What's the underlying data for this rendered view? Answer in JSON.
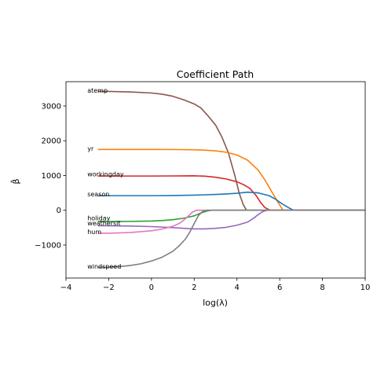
{
  "chart_data": {
    "type": "line",
    "title": "Coefficient Path",
    "xlabel": "log(λ)",
    "ylabel": "β̂",
    "xlim": [
      -4,
      10
    ],
    "ylim": [
      -1950,
      3700
    ],
    "xticks": [
      -4,
      -2,
      0,
      2,
      4,
      6,
      8,
      10
    ],
    "xtick_labels": [
      "−4",
      "−2",
      "0",
      "2",
      "4",
      "6",
      "8",
      "10"
    ],
    "yticks": [
      -1000,
      0,
      1000,
      2000,
      3000
    ],
    "ytick_labels": [
      "−1000",
      "0",
      "1000",
      "2000",
      "3000"
    ],
    "grid": false,
    "legend": "none",
    "series": [
      {
        "name": "atemp",
        "color": "#8c564b",
        "label_at": [
          -3.0,
          3450
        ],
        "x": [
          -2.5,
          -2,
          -1,
          0,
          0.5,
          1,
          1.5,
          2,
          2.3,
          2.6,
          3,
          3.3,
          3.6,
          3.9,
          4.1,
          4.3,
          4.45,
          10
        ],
        "y": [
          3420,
          3418,
          3405,
          3375,
          3340,
          3280,
          3180,
          3060,
          2950,
          2750,
          2450,
          2100,
          1650,
          1000,
          500,
          150,
          0,
          0
        ]
      },
      {
        "name": "yr",
        "color": "#ff7f0e",
        "label_at": [
          -3.0,
          1780
        ],
        "x": [
          -2.5,
          -2,
          -1,
          0,
          1,
          2,
          2.5,
          3,
          3.5,
          4,
          4.5,
          5,
          5.3,
          5.6,
          5.9,
          6.15,
          10
        ],
        "y": [
          1750,
          1750,
          1750,
          1750,
          1748,
          1740,
          1730,
          1710,
          1670,
          1590,
          1440,
          1150,
          880,
          560,
          250,
          0,
          0
        ]
      },
      {
        "name": "workingday",
        "color": "#d62728",
        "label_at": [
          -3.0,
          1040
        ],
        "x": [
          -2.5,
          -2,
          -1,
          0,
          1,
          2,
          2.5,
          3,
          3.5,
          4,
          4.3,
          4.6,
          4.9,
          5.1,
          5.3,
          5.55,
          10
        ],
        "y": [
          985,
          985,
          985,
          985,
          988,
          992,
          980,
          950,
          900,
          820,
          740,
          630,
          420,
          230,
          80,
          0,
          0
        ]
      },
      {
        "name": "season",
        "color": "#1f77b4",
        "label_at": [
          -3.0,
          470
        ],
        "x": [
          -2.5,
          -2,
          -1,
          0,
          1,
          2,
          3,
          3.5,
          4,
          4.5,
          5,
          5.5,
          5.8,
          6.1,
          6.4,
          6.65,
          10
        ],
        "y": [
          420,
          420,
          420,
          420,
          425,
          435,
          455,
          470,
          490,
          520,
          500,
          420,
          320,
          190,
          80,
          0,
          0
        ]
      },
      {
        "name": "holiday",
        "color": "#2ca02c",
        "label_at": [
          -3.0,
          -220
        ],
        "x": [
          -2.5,
          -2,
          -1,
          0,
          0.5,
          1,
          1.5,
          2,
          2.3,
          2.6,
          2.8,
          10
        ],
        "y": [
          -325,
          -325,
          -320,
          -310,
          -295,
          -270,
          -230,
          -160,
          -80,
          -20,
          0,
          0
        ]
      },
      {
        "name": "weathersit",
        "color": "#9467bd",
        "label_at": [
          -3.0,
          -365
        ],
        "x": [
          -2.5,
          -2,
          -1,
          0,
          1,
          1.5,
          2,
          2.5,
          3,
          3.5,
          4,
          4.5,
          4.8,
          5.0,
          5.2,
          5.4,
          10
        ],
        "y": [
          -445,
          -447,
          -455,
          -470,
          -500,
          -520,
          -535,
          -535,
          -520,
          -490,
          -430,
          -340,
          -220,
          -120,
          -40,
          0,
          0
        ]
      },
      {
        "name": "hum",
        "color": "#e377c2",
        "label_at": [
          -3.0,
          -620
        ],
        "x": [
          -2.5,
          -2,
          -1,
          0,
          0.5,
          1,
          1.3,
          1.5,
          1.7,
          1.9,
          2.1,
          10
        ],
        "y": [
          -660,
          -660,
          -640,
          -590,
          -540,
          -460,
          -380,
          -290,
          -180,
          -60,
          0,
          0
        ]
      },
      {
        "name": "windspeed",
        "color": "#7f7f7f",
        "label_at": [
          -3.0,
          -1610
        ],
        "x": [
          -2.5,
          -2,
          -1.5,
          -1,
          -0.5,
          0,
          0.5,
          1,
          1.3,
          1.6,
          1.8,
          2,
          2.2,
          2.4,
          2.6,
          10
        ],
        "y": [
          -1640,
          -1638,
          -1620,
          -1590,
          -1540,
          -1460,
          -1350,
          -1180,
          -1020,
          -820,
          -620,
          -380,
          -150,
          -30,
          0,
          0
        ]
      }
    ]
  }
}
